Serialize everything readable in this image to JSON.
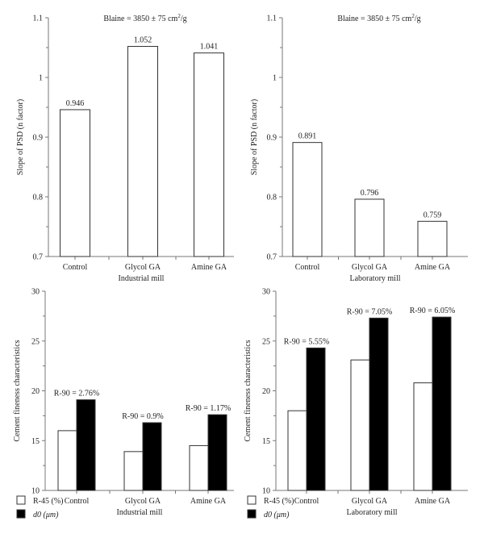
{
  "chart_data": [
    {
      "type": "bar",
      "title": "Blaine = 3850 ± 75 cm",
      "title_sup": "2",
      "title_tail": "/g",
      "xlabel": "Industrial mill",
      "ylabel": "Slope of PSD (n factor)",
      "ylim": [
        0.7,
        1.1
      ],
      "yticks": [
        "0.7",
        "0.8",
        "0.9",
        "1",
        "1.1"
      ],
      "categories": [
        "Control",
        "Glycol GA",
        "Amine GA"
      ],
      "values": [
        0.946,
        1.052,
        1.041
      ],
      "data_labels": [
        "0.946",
        "1.052",
        "1.041"
      ]
    },
    {
      "type": "bar",
      "title": "Blaine = 3850 ± 75 cm",
      "title_sup": "2",
      "title_tail": "/g",
      "xlabel": "Laboratory mill",
      "ylabel": "Slope of PSD (n factor)",
      "ylim": [
        0.7,
        1.1
      ],
      "yticks": [
        "0.7",
        "0.8",
        "0.9",
        "1",
        "1.1"
      ],
      "categories": [
        "Control",
        "Glycol GA",
        "Amine GA"
      ],
      "values": [
        0.891,
        0.796,
        0.759
      ],
      "data_labels": [
        "0.891",
        "0.796",
        "0.759"
      ]
    },
    {
      "type": "bar",
      "xlabel": "Industrial mill",
      "ylabel": "Cement fineness characteristics",
      "ylim": [
        10,
        30
      ],
      "yticks": [
        "10",
        "15",
        "20",
        "25",
        "30"
      ],
      "categories": [
        "Control",
        "Glycol GA",
        "Amine GA"
      ],
      "series": [
        {
          "name": "R-45 (%)",
          "color": "#ffffff",
          "values": [
            16.0,
            13.9,
            14.5
          ]
        },
        {
          "name": "d0 (μm)",
          "color": "#000000",
          "values": [
            19.1,
            16.8,
            17.6
          ]
        }
      ],
      "annotations": [
        "R-90 = 2.76%",
        "R-90 = 0.9%",
        "R-90 = 1.17%"
      ],
      "legend": "bottom-left"
    },
    {
      "type": "bar",
      "xlabel": "Laboratory mill",
      "ylabel": "Cement fineness characteristics",
      "ylim": [
        10,
        30
      ],
      "yticks": [
        "10",
        "15",
        "20",
        "25",
        "30"
      ],
      "categories": [
        "Control",
        "Glycol GA",
        "Amine GA"
      ],
      "series": [
        {
          "name": "R-45 (%)",
          "color": "#ffffff",
          "values": [
            18.0,
            23.1,
            20.8
          ]
        },
        {
          "name": "d0 (μm)",
          "color": "#000000",
          "values": [
            24.3,
            27.3,
            27.4
          ]
        }
      ],
      "annotations": [
        "R-90 = 5.55%",
        "R-90 = 7.05%",
        "R-90 = 6.05%"
      ],
      "legend": "bottom-left"
    }
  ]
}
